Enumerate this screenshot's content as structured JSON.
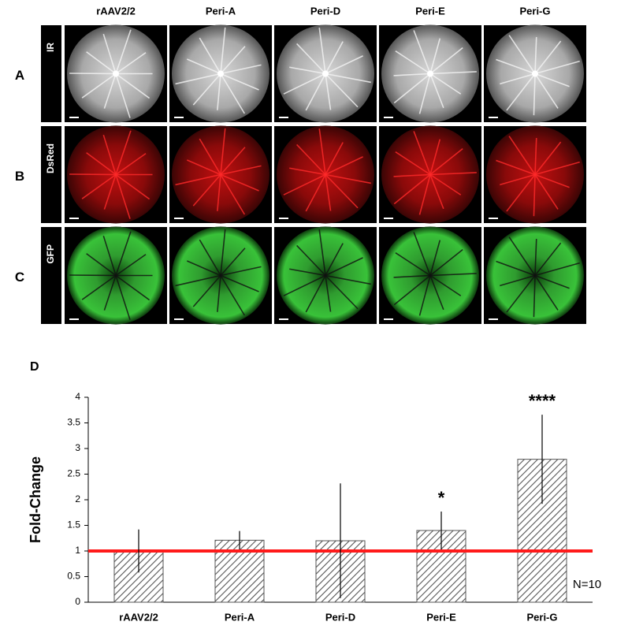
{
  "figure": {
    "columns": [
      "rAAV2/2",
      "Peri-A",
      "Peri-D",
      "Peri-E",
      "Peri-G"
    ],
    "rows": [
      {
        "label": "A",
        "channel": "IR"
      },
      {
        "label": "B",
        "channel": "DsRed"
      },
      {
        "label": "C",
        "channel": "GFP"
      }
    ]
  },
  "chart_data": {
    "type": "bar",
    "panel_label": "D",
    "ylabel": "Fold-Change",
    "categories": [
      "rAAV2/2",
      "Peri-A",
      "Peri-D",
      "Peri-E",
      "Peri-G"
    ],
    "values": [
      1.0,
      1.21,
      1.2,
      1.4,
      2.79
    ],
    "errors": [
      0.42,
      0.18,
      1.12,
      0.37,
      0.87
    ],
    "significance": [
      null,
      null,
      null,
      "*",
      "****"
    ],
    "color": "#555555",
    "hatch": true,
    "reference_line": {
      "value": 1,
      "color": "#ff1a1a"
    },
    "note": "N=10",
    "ylim": [
      0,
      4
    ],
    "yticks": [
      0,
      0.5,
      1,
      1.5,
      2,
      2.5,
      3,
      3.5,
      4
    ],
    "grid": false
  }
}
